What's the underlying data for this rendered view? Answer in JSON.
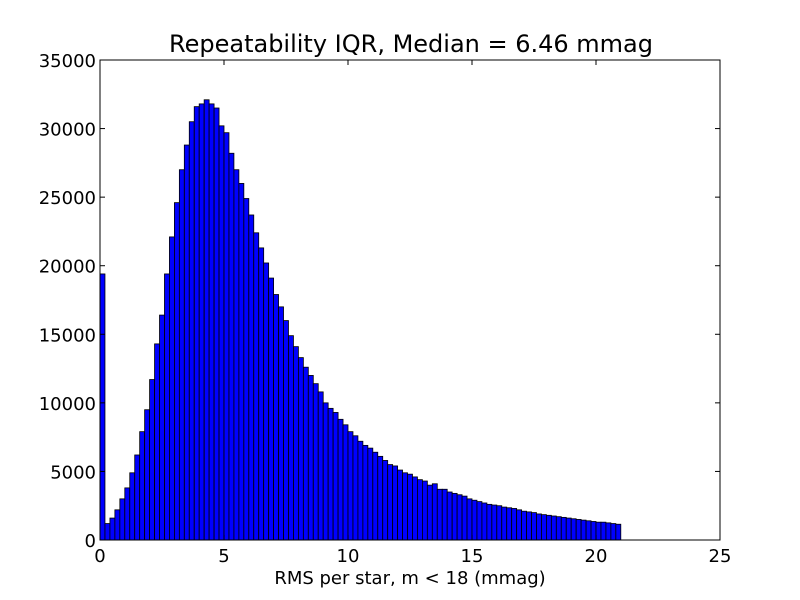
{
  "chart_data": {
    "type": "bar",
    "title": "Repeatability IQR, Median = 6.46 mmag",
    "xlabel": "RMS per star, m < 18 (mmag)",
    "ylabel": "",
    "xlim": [
      0,
      25
    ],
    "ylim": [
      0,
      35000
    ],
    "xticks": [
      0,
      5,
      10,
      15,
      20,
      25
    ],
    "yticks": [
      0,
      5000,
      10000,
      15000,
      20000,
      25000,
      30000,
      35000
    ],
    "grid": false,
    "legend": "none",
    "bar_color": "#0000ff",
    "bin_width": 0.2,
    "bin_start": 0,
    "values": [
      19400,
      1200,
      1600,
      2200,
      3000,
      3800,
      4900,
      6200,
      7900,
      9500,
      11700,
      14300,
      16400,
      19400,
      22100,
      24600,
      27000,
      28800,
      30500,
      31600,
      31800,
      32100,
      31800,
      31500,
      30200,
      29700,
      28200,
      27000,
      26000,
      24900,
      23700,
      22400,
      21300,
      20200,
      19100,
      17900,
      17000,
      16000,
      14900,
      14100,
      13300,
      12600,
      12000,
      11400,
      10800,
      10000,
      9600,
      9300,
      8800,
      8400,
      7900,
      7600,
      7200,
      6900,
      6700,
      6400,
      6100,
      5800,
      5500,
      5400,
      5100,
      4900,
      4800,
      4600,
      4400,
      4300,
      4000,
      4100,
      3700,
      3700,
      3500,
      3400,
      3300,
      3200,
      3000,
      2900,
      2800,
      2700,
      2600,
      2550,
      2500,
      2400,
      2350,
      2300,
      2200,
      2100,
      2050,
      2000,
      1900,
      1850,
      1800,
      1750,
      1700,
      1650,
      1600,
      1550,
      1500,
      1450,
      1400,
      1350,
      1300,
      1300,
      1250,
      1200,
      1150
    ]
  }
}
